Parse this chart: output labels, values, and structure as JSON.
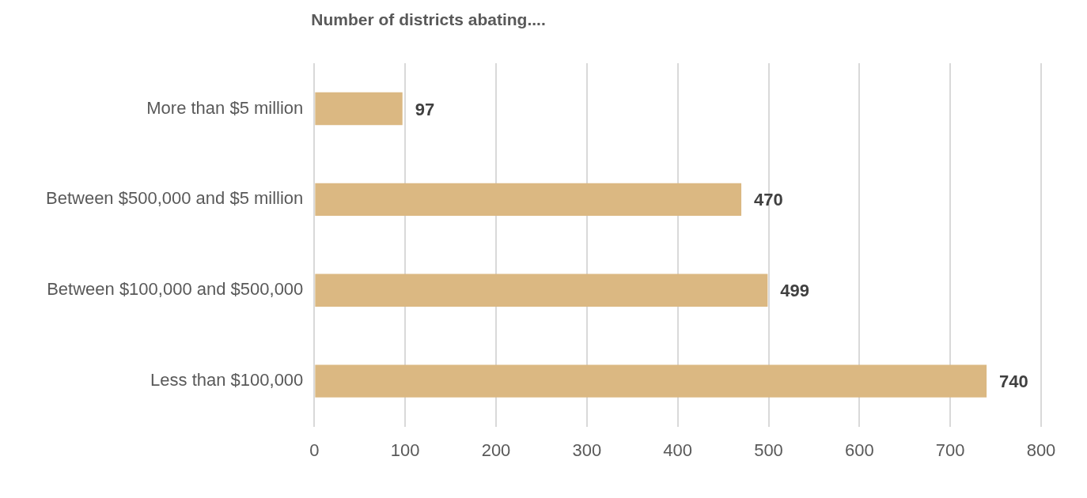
{
  "chart_data": {
    "type": "bar",
    "orientation": "horizontal",
    "title": "Number of districts abating....",
    "categories": [
      "More than $5 million",
      "Between $500,000 and $5 million",
      "Between $100,000 and $500,000",
      "Less than $100,000"
    ],
    "values": [
      97,
      470,
      499,
      740
    ],
    "color": "#dbb882",
    "xlim": [
      0,
      800
    ],
    "xticks": [
      0,
      100,
      200,
      300,
      400,
      500,
      600,
      700,
      800
    ],
    "grid": "x",
    "data_labels": true,
    "legend": false
  }
}
